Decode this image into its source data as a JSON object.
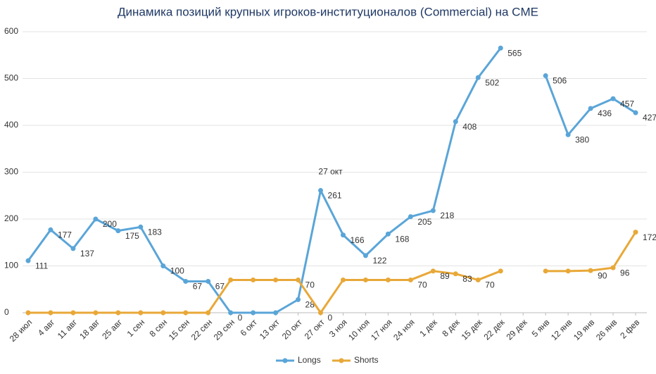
{
  "chart_data": {
    "type": "line",
    "title": "Динамика позиций крупных игроков-институционалов (Commercial) на CME",
    "categories": [
      "28 июл",
      "4 авг",
      "11 авг",
      "18 авг",
      "25 авг",
      "1 сен",
      "8 сен",
      "15 сен",
      "22 сен",
      "29 сен",
      "6 окт",
      "13 окт",
      "20 окт",
      "27 окт",
      "3 ноя",
      "10 ноя",
      "17 ноя",
      "24 ноя",
      "1 дек",
      "8 дек",
      "15 дек",
      "22 дек",
      "29 дек",
      "5 янв",
      "12 янв",
      "19 янв",
      "26 янв",
      "2 фев"
    ],
    "series": [
      {
        "name": "Longs",
        "color": "#5aa5d8",
        "values": [
          111,
          177,
          137,
          200,
          175,
          183,
          100,
          67,
          67,
          0,
          0,
          0,
          28,
          261,
          166,
          122,
          168,
          205,
          218,
          408,
          502,
          565,
          null,
          506,
          380,
          436,
          457,
          427
        ],
        "value_labels": [
          "111",
          "177",
          "137",
          "200",
          "175",
          "183",
          "100",
          "67",
          "67",
          "0",
          null,
          null,
          "28",
          "261",
          "166",
          "122",
          "168",
          "205",
          "218",
          "408",
          "502",
          "565",
          null,
          "506",
          "380",
          "436",
          "457",
          "427"
        ]
      },
      {
        "name": "Shorts",
        "color": "#e8a838",
        "values": [
          0,
          0,
          0,
          0,
          0,
          0,
          0,
          0,
          0,
          70,
          70,
          70,
          70,
          0,
          70,
          70,
          70,
          70,
          89,
          83,
          70,
          89,
          null,
          89,
          89,
          90,
          96,
          172
        ],
        "value_labels": [
          null,
          null,
          null,
          null,
          null,
          null,
          null,
          null,
          null,
          null,
          null,
          null,
          "70",
          "0",
          null,
          null,
          null,
          "70",
          "89",
          "83",
          "70",
          null,
          null,
          null,
          null,
          "90",
          "96",
          "172"
        ]
      }
    ],
    "annotations": [
      "27 окт"
    ],
    "ylim": [
      0,
      600
    ],
    "yticks": [
      0,
      100,
      200,
      300,
      400,
      500,
      600
    ],
    "grid": true,
    "legend": "bottom"
  }
}
